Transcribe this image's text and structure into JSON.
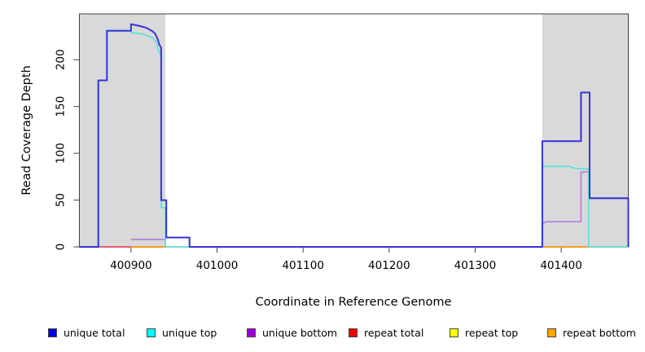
{
  "chart_data": {
    "type": "line",
    "subtype": "step-coverage-plot",
    "title": "",
    "xlabel": "Coordinate in Reference Genome",
    "ylabel": "Read Coverage Depth",
    "xlim": [
      400840,
      401478
    ],
    "ylim": [
      0,
      249
    ],
    "x_ticks": [
      400900,
      401000,
      401100,
      401200,
      401300,
      401400
    ],
    "y_ticks": [
      0,
      50,
      100,
      150,
      200
    ],
    "grid": false,
    "legend_position": "bottom",
    "plot_background": "#ffffff",
    "frame_color": "#404040",
    "shaded_regions": [
      {
        "label": "left-repeat-region",
        "x0": 400840,
        "x1": 400940,
        "color": "#d9d9d9"
      },
      {
        "label": "right-repeat-region",
        "x0": 401378,
        "x1": 401478,
        "color": "#d9d9d9"
      }
    ],
    "series": [
      {
        "name": "unique total",
        "swatch_color": "#0000ee",
        "line_color": "#3434d6",
        "line_width": 2,
        "segments": [
          [
            [
              400840,
              0
            ],
            [
              400862,
              0
            ],
            [
              400862,
              178
            ],
            [
              400872,
              178
            ],
            [
              400872,
              231
            ],
            [
              400900,
              231
            ],
            [
              400900,
              238
            ],
            [
              400910,
              236
            ],
            [
              400918,
              234
            ],
            [
              400924,
              231
            ],
            [
              400928,
              228
            ],
            [
              400931,
              222
            ],
            [
              400933,
              216
            ],
            [
              400935,
              213
            ],
            [
              400935,
              50
            ],
            [
              400941,
              50
            ],
            [
              400941,
              10
            ],
            [
              400968,
              10
            ],
            [
              400968,
              0
            ],
            [
              401378,
              0
            ],
            [
              401378,
              113
            ],
            [
              401423,
              113
            ],
            [
              401423,
              165
            ],
            [
              401433,
              165
            ],
            [
              401433,
              52
            ],
            [
              401478,
              52
            ],
            [
              401478,
              0
            ]
          ]
        ]
      },
      {
        "name": "unique top",
        "swatch_color": "#00ffff",
        "line_color": "#5fdfdc",
        "line_width": 1.8,
        "segments": [
          [
            [
              400840,
              0
            ],
            [
              400862,
              0
            ],
            [
              400862,
              178
            ],
            [
              400872,
              178
            ],
            [
              400872,
              231
            ],
            [
              400900,
              231
            ],
            [
              400900,
              229
            ],
            [
              400910,
              228
            ],
            [
              400918,
              226
            ],
            [
              400924,
              224
            ],
            [
              400928,
              221
            ],
            [
              400931,
              214
            ],
            [
              400933,
              207
            ],
            [
              400935,
              203
            ],
            [
              400935,
              42
            ],
            [
              400940,
              42
            ],
            [
              400940,
              0
            ],
            [
              401378,
              0
            ],
            [
              401378,
              86
            ],
            [
              401410,
              86
            ],
            [
              401415,
              84
            ],
            [
              401432,
              83
            ],
            [
              401432,
              0
            ],
            [
              401478,
              0
            ]
          ]
        ]
      },
      {
        "name": "unique bottom",
        "swatch_color": "#9d00d6",
        "line_color": "#b285dc",
        "line_width": 1.8,
        "segments": [
          [
            [
              400900,
              8
            ],
            [
              400940,
              8
            ],
            [
              400940,
              10
            ],
            [
              400968,
              10
            ],
            [
              400968,
              0
            ],
            [
              401378,
              0
            ],
            [
              401378,
              25
            ],
            [
              401383,
              27
            ],
            [
              401423,
              27
            ],
            [
              401423,
              80
            ],
            [
              401433,
              80
            ],
            [
              401433,
              52
            ],
            [
              401478,
              52
            ],
            [
              401478,
              0
            ]
          ]
        ]
      },
      {
        "name": "repeat total",
        "swatch_color": "#ee0000",
        "line_color": "#e2486b",
        "line_width": 1.8,
        "segments": [
          [
            [
              400862,
              0
            ],
            [
              400940,
              0
            ]
          ],
          [
            [
              401378,
              0
            ],
            [
              401478,
              0
            ]
          ]
        ]
      },
      {
        "name": "repeat top",
        "swatch_color": "#ffff00",
        "line_color": "#f2f23c",
        "line_width": 1.8,
        "segments": [
          [
            [
              400900,
              0
            ],
            [
              400968,
              0
            ]
          ],
          [
            [
              401378,
              0
            ],
            [
              401478,
              0
            ]
          ]
        ]
      },
      {
        "name": "repeat bottom",
        "swatch_color": "#ffa500",
        "line_color": "#ff9d1e",
        "line_width": 2,
        "segments": [
          [
            [
              400900,
              0
            ],
            [
              400940,
              0
            ]
          ],
          [
            [
              401378,
              0
            ],
            [
              401432,
              0
            ]
          ]
        ]
      }
    ],
    "draw_order": [
      "repeat total",
      "repeat top",
      "repeat bottom",
      "unique bottom",
      "unique top",
      "unique total"
    ]
  }
}
